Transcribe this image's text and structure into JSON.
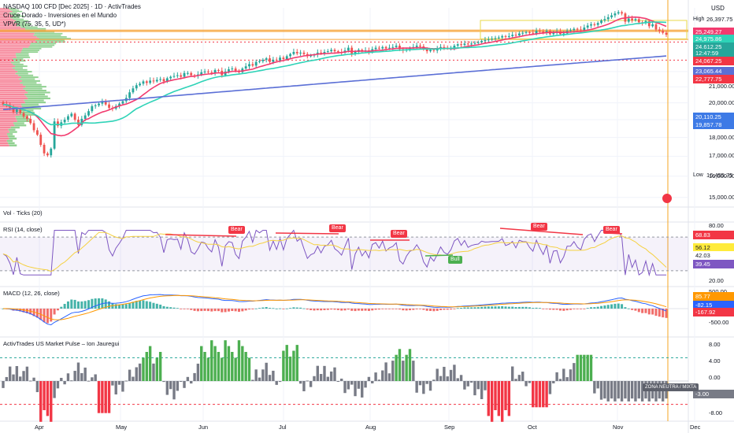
{
  "header": {
    "symbol_line": "NASDAQ 100 CFD [Dec 2025] · 1D · ActivTrades",
    "indicator_1": "Cruce Dorado - Inversiones en el Mundo",
    "indicator_2": "VPVR (75, 35, 5, UD*)",
    "currency": "USD"
  },
  "colors": {
    "up": "#26a69a",
    "down": "#ef5350",
    "sma_fast": "#f23b6f",
    "sma_mid": "#2ed3b7",
    "sma_slow": "#5b6fd6",
    "poc": "#f7a53a",
    "vpvr_up": "#7ec97e",
    "vpvr_down": "#f4728a",
    "rsi": "#7e57c2",
    "macd": "#2962ff",
    "signal": "#ff9800",
    "pulse_green": "#4caf50",
    "pulse_red": "#f23645",
    "pulse_gray": "#787b86"
  },
  "chart_data": [
    {
      "type": "candlestick",
      "name": "NASDAQ 100 CFD [Dec 2025]",
      "x_ticks": [
        "Apr",
        "May",
        "Jun",
        "Jul",
        "Aug",
        "Sep",
        "Oct",
        "Nov",
        "Dec"
      ],
      "y_ticks": [
        15000,
        16000,
        17000,
        18000,
        19000,
        20000,
        21000,
        22000
      ],
      "ylim": [
        14600,
        26700
      ],
      "y_scale": "log",
      "high": 26397.75,
      "low": 16455.75,
      "last_price": 24612.25,
      "countdown": "12:47:59",
      "price_tags": [
        {
          "value": "25,249.27",
          "color": "#f23b6f"
        },
        {
          "value": "24,975.86",
          "color": "#2ed3b7"
        },
        {
          "value": "24,612.25",
          "color": "#26a69a"
        },
        {
          "value": "12:47:59",
          "color": "#26a69a"
        },
        {
          "value": "24,067.25",
          "color": "#f23645"
        },
        {
          "value": "23,065.44",
          "color": "#5b6fd6"
        },
        {
          "value": "22,777.75",
          "color": "#f23645"
        },
        {
          "value": "20,110.25",
          "color": "#3d7ae6"
        },
        {
          "value": "19,857.78",
          "color": "#3d7ae6"
        }
      ],
      "moving_averages": [
        {
          "label": "SMA fast",
          "color": "#f23b6f",
          "last": 25249.27
        },
        {
          "label": "SMA mid",
          "color": "#2ed3b7",
          "last": 24975.86
        },
        {
          "label": "SMA slow",
          "color": "#5b6fd6",
          "last": 23065.44
        }
      ],
      "closes": [
        19900,
        19850,
        19700,
        19450,
        19600,
        19380,
        19200,
        19050,
        18800,
        18400,
        18150,
        17600,
        17150,
        17050,
        17400,
        18900,
        18650,
        18850,
        19000,
        19200,
        19350,
        19000,
        18700,
        19050,
        19250,
        19500,
        19800,
        19850,
        19950,
        20050,
        19900,
        19700,
        19650,
        19800,
        19950,
        20100,
        20300,
        20650,
        20900,
        21100,
        21200,
        21350,
        21250,
        21400,
        21350,
        21450,
        21500,
        21350,
        21550,
        21650,
        21700,
        21750,
        21650,
        21900,
        21900,
        21750,
        21700,
        21800,
        21950,
        22000,
        21950,
        21900,
        22100,
        22050,
        21750,
        22000,
        22150,
        22200,
        22050,
        21950,
        22200,
        22350,
        22500,
        22400,
        22650,
        22700,
        22800,
        22900,
        22650,
        22800,
        22750,
        22950,
        22850,
        23050,
        23200,
        23350,
        23250,
        23300,
        23200,
        23050,
        23100,
        23150,
        23300,
        23250,
        23350,
        23400,
        23500,
        23400,
        23350,
        23300,
        23450,
        23650,
        23200,
        23350,
        23500,
        23400,
        23450,
        23350,
        23550,
        23650,
        23600,
        23700,
        23600,
        23650,
        23700,
        23800,
        23550,
        23450,
        23550,
        23650,
        23700,
        23800,
        23750,
        23550,
        23400,
        23500,
        23450,
        23550,
        23700,
        23650,
        23600,
        23650,
        23800,
        23900,
        23850,
        23950,
        23900,
        23950,
        24000,
        24050,
        24150,
        24200,
        24250,
        24300,
        24350,
        24400,
        24500,
        24450,
        24500,
        24600,
        24550,
        24700,
        24750,
        24800,
        24750,
        24700,
        24900,
        24850,
        24750,
        24900,
        24650,
        24800,
        24850,
        24650,
        24700,
        24900,
        24950,
        25050,
        25000,
        24950,
        25150,
        25300,
        25400,
        25350,
        25500,
        25700,
        25800,
        25950,
        26100,
        26250,
        26350,
        26250,
        25600,
        25850,
        25700,
        25800,
        25550,
        25500,
        25650,
        25250,
        25400,
        25000,
        24900,
        24750,
        24612
      ]
    },
    {
      "type": "bar",
      "name": "Vol · Ticks (20)",
      "title": "Vol · Ticks (20)"
    },
    {
      "type": "line",
      "name": "RSI (14, close)",
      "title": "RSI (14, close)",
      "y_ticks": [
        20,
        80
      ],
      "bands": [
        30,
        70
      ],
      "last": 39.45,
      "tags": [
        {
          "value": "68.83",
          "color": "#f23645"
        },
        {
          "value": "56.12",
          "color": "#ffeb3b"
        },
        {
          "value": "42.03",
          "color": "#ffffff"
        },
        {
          "value": "39.45",
          "color": "#7e57c2"
        }
      ],
      "labels": [
        {
          "text": "Bear",
          "kind": "bear"
        },
        {
          "text": "Bear",
          "kind": "bear"
        },
        {
          "text": "Bear",
          "kind": "bear"
        },
        {
          "text": "Bear",
          "kind": "bear"
        },
        {
          "text": "Bear",
          "kind": "bear"
        },
        {
          "text": "Bull",
          "kind": "bull"
        }
      ]
    },
    {
      "type": "bar",
      "name": "MACD (12, 26, close)",
      "title": "MACD (12, 26, close)",
      "y_ticks": [
        500,
        -500
      ],
      "tags": [
        {
          "value": "85.77",
          "color": "#ff9800"
        },
        {
          "value": "-82.15",
          "color": "#2962ff"
        },
        {
          "value": "-167.92",
          "color": "#f23645"
        }
      ]
    },
    {
      "type": "bar",
      "name": "ActivTrades US Market Pulse – Ion Jauregui",
      "title": "ActivTrades US Market Pulse – Ion Jauregui",
      "y_ticks": [
        "8.00",
        "4.00",
        "0.00",
        "-4.00",
        "-8.00"
      ],
      "last_tag": "-3.00",
      "zone_label": "ZONA NEUTRA / MIXTA"
    }
  ]
}
